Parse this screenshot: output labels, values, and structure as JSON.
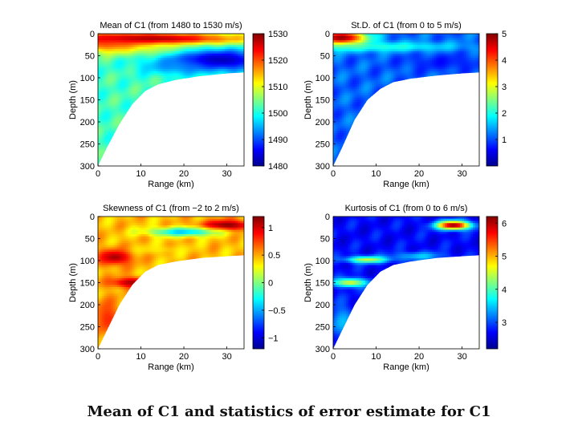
{
  "caption": "Mean of C1 and statistics of error estimate for C1",
  "colors": {
    "jet": [
      "#00008f",
      "#0000ff",
      "#0080ff",
      "#00ffff",
      "#80ff80",
      "#ffff00",
      "#ff8000",
      "#ff0000",
      "#800000"
    ],
    "background": "#ffffff"
  },
  "chart_data": [
    {
      "type": "heatmap",
      "title": "Mean of C1 (from 1480 to 1530 m/s)",
      "xlabel": "Range (km)",
      "ylabel": "Depth (m)",
      "xlim": [
        0,
        34
      ],
      "ylim": [
        300,
        0
      ],
      "x_ticks": [
        "0",
        "10",
        "20",
        "30"
      ],
      "y_ticks": [
        "0",
        "50",
        "100",
        "150",
        "200",
        "250",
        "300"
      ],
      "colorbar": {
        "min": 1480,
        "max": 1530,
        "ticks": [
          "1530",
          "1520",
          "1510",
          "1500",
          "1490",
          "1480"
        ]
      },
      "bathymetry_km_m": [
        [
          0,
          300
        ],
        [
          2,
          260
        ],
        [
          5,
          205
        ],
        [
          8,
          160
        ],
        [
          11,
          130
        ],
        [
          14,
          115
        ],
        [
          18,
          105
        ],
        [
          24,
          96
        ],
        [
          30,
          90
        ],
        [
          34,
          88
        ]
      ],
      "blobs": [
        {
          "x": 10,
          "y": 12,
          "rx": 25,
          "ry": 15,
          "v": 1530,
          "w": 1
        },
        {
          "x": 3,
          "y": 25,
          "rx": 10,
          "ry": 20,
          "v": 1522,
          "w": 0.8
        },
        {
          "x": 16,
          "y": 38,
          "rx": 9,
          "ry": 15,
          "v": 1512,
          "w": 0.7
        },
        {
          "x": 28,
          "y": 60,
          "rx": 12,
          "ry": 25,
          "v": 1482,
          "w": 1
        },
        {
          "x": 18,
          "y": 75,
          "rx": 8,
          "ry": 18,
          "v": 1492,
          "w": 0.7
        }
      ],
      "base_value": 1502
    },
    {
      "type": "heatmap",
      "title": "St.D. of C1 (from 0 to 5 m/s)",
      "xlabel": "Range (km)",
      "ylabel": "Depth (m)",
      "xlim": [
        0,
        34
      ],
      "ylim": [
        300,
        0
      ],
      "x_ticks": [
        "0",
        "10",
        "20",
        "30"
      ],
      "y_ticks": [
        "0",
        "50",
        "100",
        "150",
        "200",
        "250",
        "300"
      ],
      "colorbar": {
        "min": 0,
        "max": 5,
        "ticks": [
          "5",
          "4",
          "3",
          "2",
          "1"
        ]
      },
      "bathymetry_km_m": [
        [
          0,
          300
        ],
        [
          2,
          260
        ],
        [
          5,
          195
        ],
        [
          8,
          150
        ],
        [
          11,
          125
        ],
        [
          14,
          110
        ],
        [
          18,
          102
        ],
        [
          24,
          95
        ],
        [
          30,
          90
        ],
        [
          34,
          88
        ]
      ],
      "blobs": [
        {
          "x": 2,
          "y": 10,
          "rx": 6,
          "ry": 18,
          "v": 5,
          "w": 1
        },
        {
          "x": 12,
          "y": 30,
          "rx": 18,
          "ry": 12,
          "v": 2.4,
          "w": 0.7
        },
        {
          "x": 26,
          "y": 65,
          "rx": 10,
          "ry": 20,
          "v": 0.5,
          "w": 0.6
        }
      ],
      "base_value": 1.1
    },
    {
      "type": "heatmap",
      "title": "Skewness of C1 (from −2 to 2 m/s)",
      "xlabel": "Range (km)",
      "ylabel": "Depth (m)",
      "xlim": [
        0,
        34
      ],
      "ylim": [
        300,
        0
      ],
      "x_ticks": [
        "0",
        "10",
        "20",
        "30"
      ],
      "y_ticks": [
        "0",
        "50",
        "100",
        "150",
        "200",
        "250",
        "300"
      ],
      "colorbar": {
        "min": -1.2,
        "max": 1.2,
        "ticks": [
          "1",
          "0.5",
          "0",
          "−0.5",
          "−1"
        ]
      },
      "bathymetry_km_m": [
        [
          0,
          300
        ],
        [
          2,
          260
        ],
        [
          5,
          200
        ],
        [
          8,
          155
        ],
        [
          11,
          125
        ],
        [
          14,
          110
        ],
        [
          18,
          102
        ],
        [
          24,
          94
        ],
        [
          30,
          90
        ],
        [
          34,
          88
        ]
      ],
      "blobs": [
        {
          "x": 30,
          "y": 20,
          "rx": 6,
          "ry": 12,
          "v": 1.2,
          "w": 1
        },
        {
          "x": 4,
          "y": 92,
          "rx": 4,
          "ry": 18,
          "v": 1.1,
          "w": 1
        },
        {
          "x": 8,
          "y": 150,
          "rx": 5,
          "ry": 12,
          "v": 1.1,
          "w": 1
        },
        {
          "x": 20,
          "y": 35,
          "rx": 8,
          "ry": 10,
          "v": -0.8,
          "w": 0.7
        },
        {
          "x": 14,
          "y": 75,
          "rx": 7,
          "ry": 10,
          "v": 0.3,
          "w": 0.6
        },
        {
          "x": 2,
          "y": 230,
          "rx": 3,
          "ry": 40,
          "v": 0.9,
          "w": 0.8
        }
      ],
      "base_value": 0.45
    },
    {
      "type": "heatmap",
      "title": "Kurtosis of C1 (from 0 to 6 m/s)",
      "xlabel": "Range (km)",
      "ylabel": "Depth (m)",
      "xlim": [
        0,
        34
      ],
      "ylim": [
        300,
        0
      ],
      "x_ticks": [
        "0",
        "10",
        "20",
        "30"
      ],
      "y_ticks": [
        "0",
        "50",
        "100",
        "150",
        "200",
        "250",
        "300"
      ],
      "colorbar": {
        "min": 2.2,
        "max": 6.2,
        "ticks": [
          "6",
          "5",
          "4",
          "3"
        ]
      },
      "bathymetry_km_m": [
        [
          0,
          300
        ],
        [
          2,
          260
        ],
        [
          5,
          200
        ],
        [
          8,
          155
        ],
        [
          11,
          125
        ],
        [
          14,
          110
        ],
        [
          18,
          102
        ],
        [
          24,
          94
        ],
        [
          30,
          90
        ],
        [
          34,
          88
        ]
      ],
      "blobs": [
        {
          "x": 28,
          "y": 20,
          "rx": 4,
          "ry": 10,
          "v": 6.2,
          "w": 1
        },
        {
          "x": 8,
          "y": 98,
          "rx": 5,
          "ry": 8,
          "v": 4.7,
          "w": 0.9
        },
        {
          "x": 4,
          "y": 150,
          "rx": 4,
          "ry": 10,
          "v": 4.8,
          "w": 0.9
        },
        {
          "x": 20,
          "y": 90,
          "rx": 6,
          "ry": 10,
          "v": 4.0,
          "w": 0.6
        },
        {
          "x": 2,
          "y": 240,
          "rx": 3,
          "ry": 40,
          "v": 3.7,
          "w": 0.7
        }
      ],
      "base_value": 2.7
    }
  ]
}
